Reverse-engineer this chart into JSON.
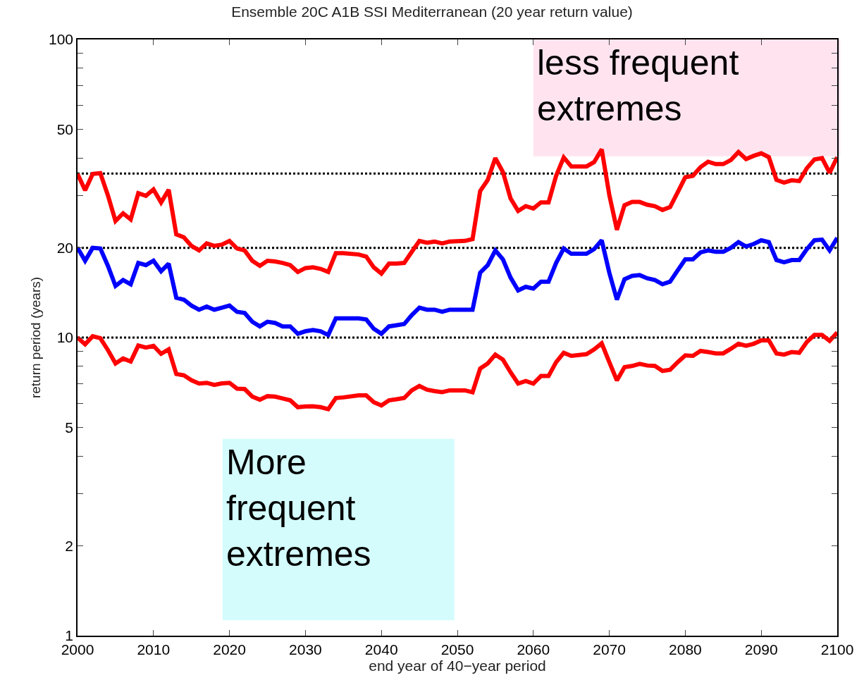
{
  "chart_data": {
    "type": "line",
    "title": "Ensemble 20C A1B SSI Mediterranean (20 year return value)",
    "xlabel": "end year of 40−year period",
    "ylabel": "return period (years)",
    "x": [
      2000,
      2001,
      2002,
      2003,
      2004,
      2005,
      2006,
      2007,
      2008,
      2009,
      2010,
      2011,
      2012,
      2013,
      2014,
      2015,
      2016,
      2017,
      2018,
      2019,
      2020,
      2021,
      2022,
      2023,
      2024,
      2025,
      2026,
      2027,
      2028,
      2029,
      2030,
      2031,
      2032,
      2033,
      2034,
      2035,
      2037,
      2038,
      2039,
      2040,
      2041,
      2042,
      2043,
      2044,
      2045,
      2046,
      2047,
      2048,
      2049,
      2051,
      2052,
      2053,
      2054,
      2055,
      2056,
      2057,
      2058,
      2059,
      2060,
      2061,
      2062,
      2063,
      2064,
      2065,
      2067,
      2068,
      2069,
      2070,
      2071,
      2072,
      2073,
      2074,
      2075,
      2076,
      2077,
      2078,
      2079,
      2080,
      2081,
      2082,
      2083,
      2084,
      2085,
      2086,
      2087,
      2088,
      2089,
      2090,
      2091,
      2092,
      2093,
      2094,
      2095,
      2096,
      2097,
      2098,
      2099,
      2100
    ],
    "series": [
      {
        "color": "#ff0000",
        "values": [
          35.4,
          31.2,
          35.4,
          35.6,
          30.0,
          24.6,
          26.1,
          24.9,
          30.5,
          29.9,
          31.4,
          28.4,
          31.3,
          22.2,
          21.7,
          20.3,
          19.6,
          20.7,
          20.3,
          20.5,
          21.1,
          19.9,
          19.6,
          18.1,
          17.4,
          18.1,
          18.0,
          17.8,
          17.5,
          16.6,
          17.1,
          17.2,
          17.0,
          16.6,
          19.2,
          19.2,
          19.0,
          18.7,
          17.2,
          16.4,
          17.7,
          17.7,
          17.8,
          19.4,
          21.1,
          20.8,
          21.0,
          20.7,
          21.0,
          21.1,
          21.4,
          31.0,
          33.8,
          40.0,
          35.9,
          29.3,
          26.6,
          27.6,
          27.1,
          28.4,
          28.4,
          34.9,
          40.2,
          37.5,
          37.5,
          38.8,
          42.8,
          30.1,
          23.0,
          27.8,
          28.5,
          28.5,
          27.9,
          27.6,
          26.8,
          27.4,
          30.7,
          34.5,
          34.9,
          37.3,
          38.9,
          38.2,
          38.2,
          39.4,
          41.9,
          39.7,
          40.7,
          41.5,
          40.3,
          33.8,
          33.1,
          33.7,
          33.5,
          37.0,
          39.6,
          40.0,
          35.7,
          40.3
        ]
      },
      {
        "color": "#0000ff",
        "values": [
          20,
          18.1,
          20,
          19.9,
          17.4,
          14.9,
          15.6,
          15.1,
          17.8,
          17.5,
          18.1,
          16.7,
          17.7,
          13.6,
          13.4,
          12.8,
          12.4,
          12.7,
          12.4,
          12.6,
          12.8,
          12.2,
          12.1,
          11.3,
          10.9,
          11.3,
          11.2,
          10.9,
          10.9,
          10.3,
          10.5,
          10.6,
          10.5,
          10.2,
          11.6,
          11.6,
          11.6,
          11.5,
          10.7,
          10.3,
          10.9,
          11.0,
          11.1,
          11.9,
          12.6,
          12.4,
          12.4,
          12.2,
          12.4,
          12.4,
          12.4,
          16.5,
          17.5,
          19.6,
          18.3,
          15.9,
          14.4,
          14.8,
          14.6,
          15.4,
          15.4,
          17.8,
          19.9,
          19.1,
          19.1,
          19.8,
          21.2,
          16.5,
          13.4,
          15.7,
          16.1,
          16.2,
          15.8,
          15.6,
          15.1,
          15.4,
          16.8,
          18.3,
          18.3,
          19.3,
          19.6,
          19.4,
          19.4,
          20,
          20.9,
          20.2,
          20.6,
          21.2,
          20.9,
          18.2,
          17.9,
          18.2,
          18.2,
          19.8,
          21.2,
          21.3,
          19.6,
          21.6
        ]
      },
      {
        "color": "#ff0000",
        "values": [
          10.0,
          9.49,
          10.1,
          9.95,
          9.08,
          8.19,
          8.51,
          8.31,
          9.4,
          9.26,
          9.38,
          8.82,
          9.13,
          7.55,
          7.47,
          7.19,
          7.01,
          7.05,
          6.94,
          7.02,
          7.05,
          6.74,
          6.72,
          6.34,
          6.19,
          6.36,
          6.34,
          6.25,
          6.16,
          5.84,
          5.87,
          5.88,
          5.84,
          5.75,
          6.27,
          6.3,
          6.4,
          6.4,
          6.07,
          5.92,
          6.16,
          6.21,
          6.27,
          6.65,
          6.88,
          6.69,
          6.61,
          6.56,
          6.65,
          6.65,
          6.55,
          7.87,
          8.19,
          8.77,
          8.43,
          7.65,
          7.01,
          7.15,
          7.01,
          7.43,
          7.43,
          8.27,
          8.89,
          8.68,
          8.8,
          9.12,
          9.57,
          8.27,
          7.18,
          7.96,
          8.03,
          8.16,
          8.06,
          8.03,
          7.73,
          7.8,
          8.27,
          8.71,
          8.68,
          9.02,
          8.94,
          8.85,
          8.85,
          9.17,
          9.53,
          9.38,
          9.53,
          9.79,
          9.79,
          8.85,
          8.77,
          8.94,
          8.89,
          9.66,
          10.2,
          10.2,
          9.75,
          10.4
        ]
      }
    ],
    "log": "y",
    "xlim": [
      2000,
      2100
    ],
    "xticks": [
      2000,
      2010,
      2020,
      2030,
      2040,
      2050,
      2060,
      2070,
      2080,
      2090,
      2100
    ],
    "ylim": [
      1,
      100
    ],
    "yticks": [
      1,
      2,
      {
        "value": 3,
        "label": null
      },
      {
        "value": 4,
        "label": null
      },
      5,
      {
        "value": 6,
        "label": null
      },
      {
        "value": 7,
        "label": null
      },
      {
        "value": 8,
        "label": null
      },
      {
        "value": 9,
        "label": null
      },
      10,
      20,
      {
        "value": 30,
        "label": null
      },
      {
        "value": 40,
        "label": null
      },
      50,
      {
        "value": 60,
        "label": null
      },
      {
        "value": 70,
        "label": null
      },
      {
        "value": 80,
        "label": null
      },
      {
        "value": 90,
        "label": null
      },
      100
    ],
    "ref_lines": [
      {
        "axis": "y",
        "value": 10,
        "color": "#000000",
        "line_style": "dotted"
      },
      {
        "axis": "y",
        "value": 20,
        "color": "#000000",
        "line_style": "dotted"
      },
      {
        "axis": "y",
        "value": 35.5,
        "color": "#000000",
        "line_style": "dotted"
      }
    ],
    "annotations": [
      "less frequent\nextremes",
      "More\nfrequent\nextremes"
    ],
    "grid": false,
    "marker": "none",
    "line_style": "solid"
  }
}
